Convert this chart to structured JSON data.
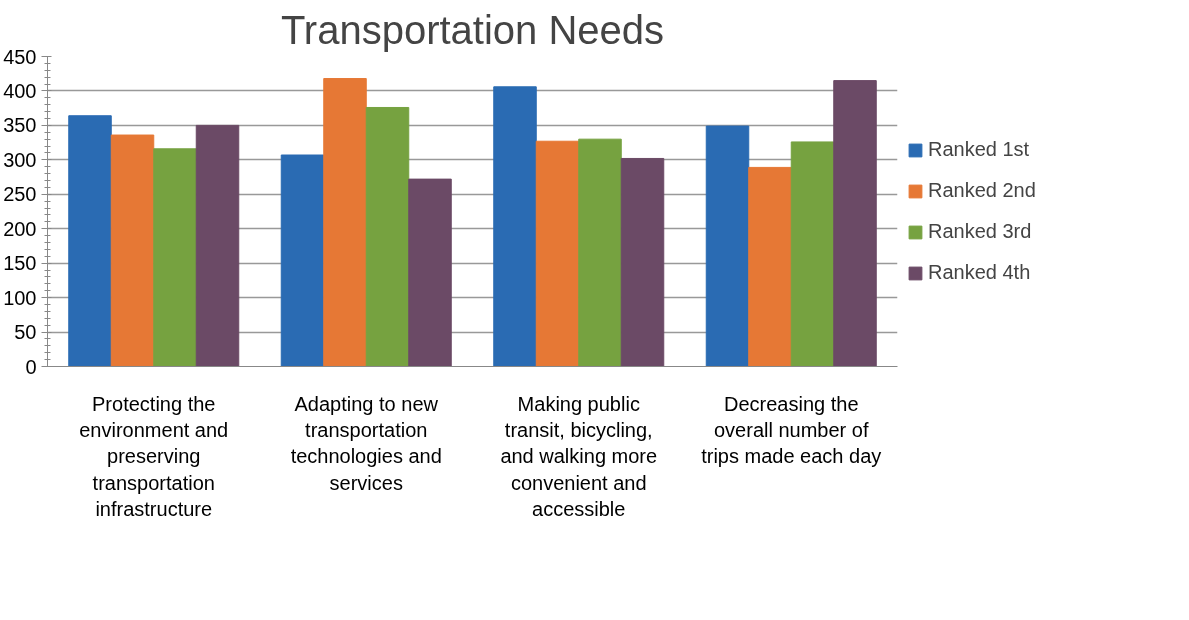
{
  "chart_data": {
    "type": "bar",
    "title": "Transportation Needs",
    "categories": [
      "Protecting the environment and preserving transportation infrastructure",
      "Adapting to new transportation technologies and services",
      "Making public transit, bicycling, and walking more convenient and accessible",
      "Decreasing the overall number of trips made each day"
    ],
    "series": [
      {
        "name": "Ranked 1st",
        "color": "#2a6bb3",
        "values": [
          364,
          307,
          406,
          349
        ]
      },
      {
        "name": "Ranked 2nd",
        "color": "#e67835",
        "values": [
          336,
          418,
          327,
          289
        ]
      },
      {
        "name": "Ranked 3rd",
        "color": "#76a240",
        "values": [
          316,
          376,
          330,
          326
        ]
      },
      {
        "name": "Ranked 4th",
        "color": "#6b4a66",
        "values": [
          350,
          272,
          302,
          415
        ]
      }
    ],
    "ylim": [
      0,
      450
    ],
    "yticks": [
      0,
      50,
      100,
      150,
      200,
      250,
      300,
      350,
      400,
      450
    ],
    "grid": "y",
    "legend": "right"
  }
}
